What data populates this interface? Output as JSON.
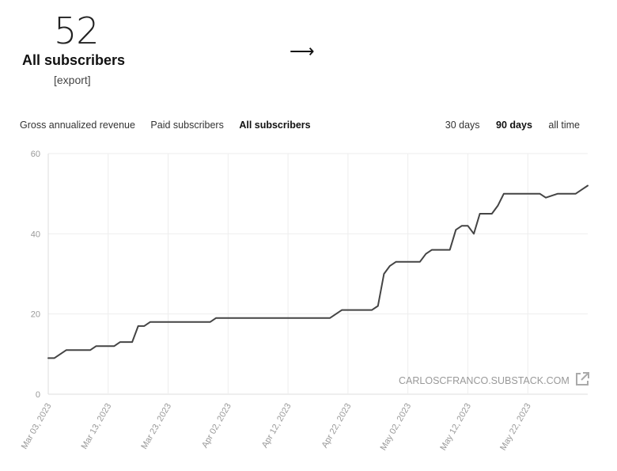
{
  "header": {
    "count": "52",
    "title": "All subscribers",
    "export_label": "[export]",
    "arrow": "⟶"
  },
  "metric_tabs": [
    {
      "label": "Gross annualized revenue",
      "active": false
    },
    {
      "label": "Paid subscribers",
      "active": false
    },
    {
      "label": "All subscribers",
      "active": true
    }
  ],
  "range_tabs": [
    {
      "label": "30 days",
      "active": false
    },
    {
      "label": "90 days",
      "active": true
    },
    {
      "label": "all time",
      "active": false
    }
  ],
  "watermark": {
    "text": "CARLOSCFRANCO.SUBSTACK.COM",
    "icon": "external-link-icon"
  },
  "colors": {
    "line": "#444444",
    "grid": "#eeeeee",
    "axis_text": "#999999"
  },
  "chart_data": {
    "type": "line",
    "x_start": "2023-03-03",
    "x_end": "2023-06-01",
    "ylim": [
      0,
      60
    ],
    "yticks": [
      "0",
      "20",
      "40",
      "60"
    ],
    "xticks": [
      "Mar 03, 2023",
      "Mar 13, 2023",
      "Mar 23, 2023",
      "Apr 02, 2023",
      "Apr 12, 2023",
      "Apr 22, 2023",
      "May 02, 2023",
      "May 12, 2023",
      "May 22, 2023"
    ],
    "grid": true,
    "series": [
      {
        "x": [
          "2023-03-03",
          "2023-03-04",
          "2023-03-06",
          "2023-03-07",
          "2023-03-09",
          "2023-03-10",
          "2023-03-11",
          "2023-03-12",
          "2023-03-13",
          "2023-03-14",
          "2023-03-15",
          "2023-03-16",
          "2023-03-17",
          "2023-03-18",
          "2023-03-19",
          "2023-03-20",
          "2023-03-21",
          "2023-03-29",
          "2023-03-30",
          "2023-03-31",
          "2023-04-01",
          "2023-04-19",
          "2023-04-21",
          "2023-04-22",
          "2023-04-26",
          "2023-04-27",
          "2023-04-28",
          "2023-04-29",
          "2023-04-30",
          "2023-05-01",
          "2023-05-02",
          "2023-05-03",
          "2023-05-04",
          "2023-05-05",
          "2023-05-06",
          "2023-05-07",
          "2023-05-08",
          "2023-05-09",
          "2023-05-10",
          "2023-05-11",
          "2023-05-12",
          "2023-05-13",
          "2023-05-14",
          "2023-05-15",
          "2023-05-16",
          "2023-05-17",
          "2023-05-18",
          "2023-05-19",
          "2023-05-22",
          "2023-05-23",
          "2023-05-24",
          "2023-05-25",
          "2023-05-27",
          "2023-05-29",
          "2023-05-30",
          "2023-05-31",
          "2023-06-01"
        ],
        "values": [
          9,
          9,
          11,
          11,
          11,
          11,
          12,
          12,
          12,
          12,
          13,
          13,
          13,
          17,
          17,
          18,
          18,
          18,
          18,
          19,
          19,
          19,
          21,
          21,
          21,
          22,
          30,
          32,
          33,
          33,
          33,
          33,
          33,
          35,
          36,
          36,
          36,
          36,
          41,
          42,
          42,
          40,
          45,
          45,
          45,
          47,
          50,
          50,
          50,
          50,
          50,
          49,
          50,
          50,
          50,
          51,
          52
        ]
      }
    ]
  }
}
